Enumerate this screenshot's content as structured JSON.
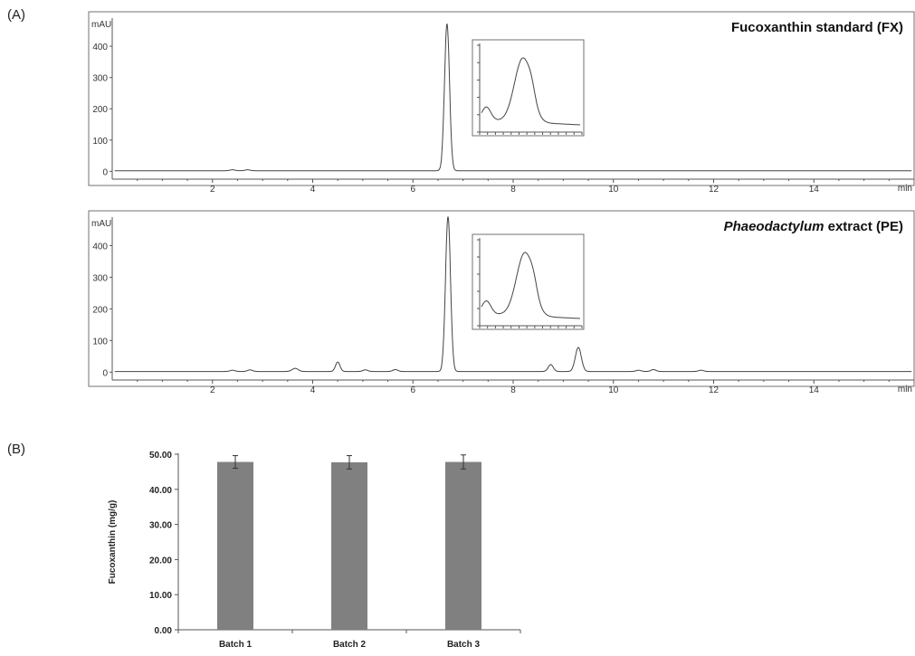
{
  "panels": {
    "a_label": "(A)",
    "b_label": "(B)"
  },
  "chart_data": [
    {
      "type": "line",
      "title": "Fucoxanthin standard (FX)",
      "title_main": "Fucoxanthin standard (FX)",
      "title_italic": "",
      "y_unit_label": "mAU",
      "x_unit_label": "min",
      "xlim": [
        0,
        16
      ],
      "ylim": [
        -25,
        490
      ],
      "x_ticks": [
        2,
        4,
        6,
        8,
        10,
        12,
        14
      ],
      "y_ticks": [
        0,
        100,
        200,
        300,
        400
      ],
      "baseline": 2,
      "peaks": [
        {
          "x": 2.4,
          "height": 3,
          "width": 0.05
        },
        {
          "x": 2.7,
          "height": 3,
          "width": 0.05
        },
        {
          "x": 6.68,
          "height": 470,
          "width": 0.05
        }
      ],
      "inset": {
        "description_shape": "absorption spectrum",
        "peak_position": 0.42
      }
    },
    {
      "type": "line",
      "title": "Phaeodactylum extract (PE)",
      "title_main": " extract (PE)",
      "title_italic": "Phaeodactylum",
      "y_unit_label": "mAU",
      "x_unit_label": "min",
      "xlim": [
        0,
        16
      ],
      "ylim": [
        -25,
        490
      ],
      "x_ticks": [
        2,
        4,
        6,
        8,
        10,
        12,
        14
      ],
      "y_ticks": [
        0,
        100,
        200,
        300,
        400
      ],
      "baseline": 2,
      "peaks": [
        {
          "x": 2.4,
          "height": 4,
          "width": 0.05
        },
        {
          "x": 2.75,
          "height": 5,
          "width": 0.05
        },
        {
          "x": 3.65,
          "height": 10,
          "width": 0.06
        },
        {
          "x": 4.5,
          "height": 30,
          "width": 0.045
        },
        {
          "x": 5.05,
          "height": 5,
          "width": 0.05
        },
        {
          "x": 5.65,
          "height": 6,
          "width": 0.05
        },
        {
          "x": 6.7,
          "height": 490,
          "width": 0.05
        },
        {
          "x": 8.75,
          "height": 22,
          "width": 0.05
        },
        {
          "x": 9.3,
          "height": 76,
          "width": 0.06
        },
        {
          "x": 10.5,
          "height": 4,
          "width": 0.05
        },
        {
          "x": 10.8,
          "height": 6,
          "width": 0.05
        },
        {
          "x": 11.75,
          "height": 4,
          "width": 0.05
        }
      ],
      "inset": {
        "description_shape": "absorption spectrum",
        "peak_position": 0.44
      }
    },
    {
      "type": "bar",
      "categories": [
        "Batch 1",
        "Batch 2",
        "Batch 3"
      ],
      "values": [
        47.8,
        47.7,
        47.8
      ],
      "errors": [
        1.8,
        1.9,
        2.0
      ],
      "ylabel": "Fucoxanthin (mg/g)",
      "ylim": [
        0,
        50
      ],
      "y_ticks": [
        "0.00",
        "10.00",
        "20.00",
        "30.00",
        "40.00",
        "50.00"
      ],
      "color": "#808080"
    }
  ]
}
